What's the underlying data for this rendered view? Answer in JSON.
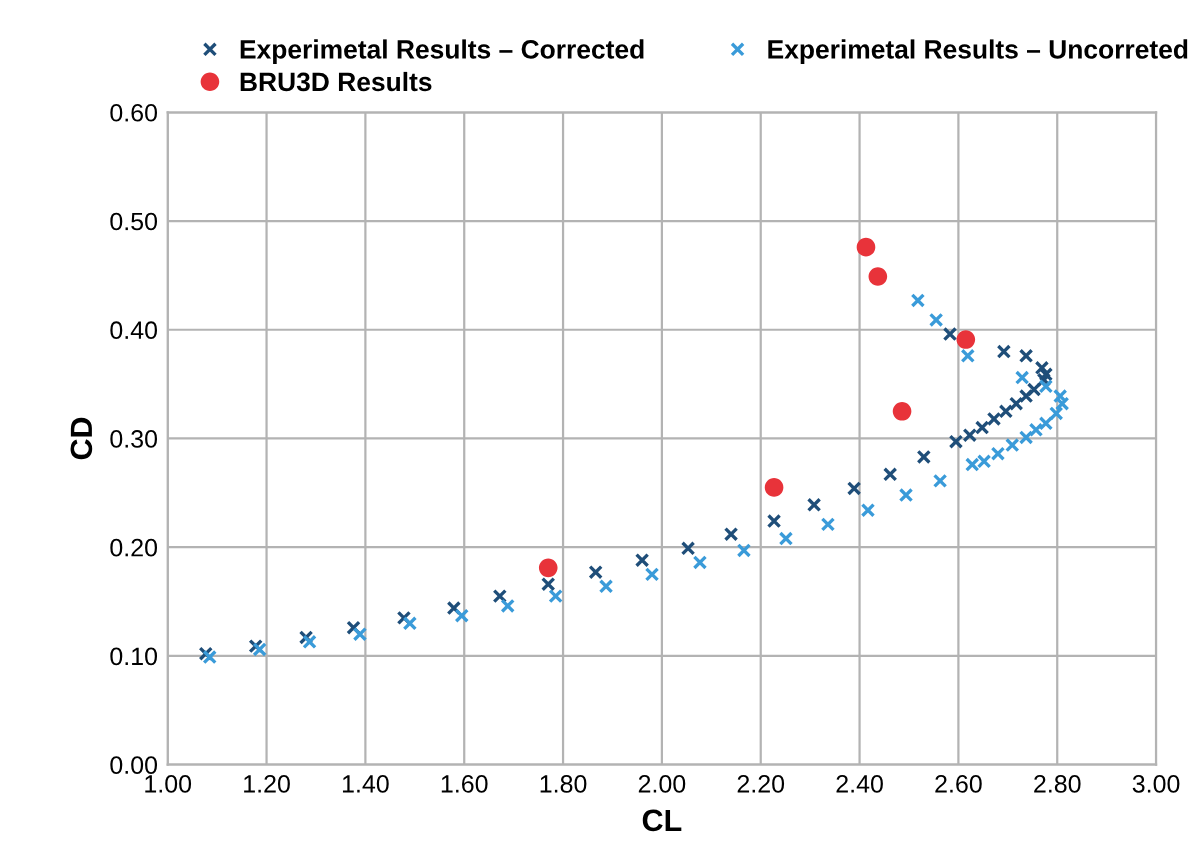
{
  "chart_data": {
    "type": "scatter",
    "xlabel": "CL",
    "ylabel": "CD",
    "xlim": [
      1.0,
      3.0
    ],
    "ylim": [
      0.0,
      0.6
    ],
    "xticks": [
      {
        "value": 1.0,
        "label": "1.00"
      },
      {
        "value": 1.2,
        "label": "1.20"
      },
      {
        "value": 1.4,
        "label": "1.40"
      },
      {
        "value": 1.6,
        "label": "1.60"
      },
      {
        "value": 1.8,
        "label": "1.80"
      },
      {
        "value": 2.0,
        "label": "2.00"
      },
      {
        "value": 2.2,
        "label": "2.20"
      },
      {
        "value": 2.4,
        "label": "2.40"
      },
      {
        "value": 2.6,
        "label": "2.60"
      },
      {
        "value": 2.8,
        "label": "2.80"
      },
      {
        "value": 3.0,
        "label": "3.00"
      }
    ],
    "yticks": [
      {
        "value": 0.0,
        "label": "0.00"
      },
      {
        "value": 0.1,
        "label": "0.10"
      },
      {
        "value": 0.2,
        "label": "0.20"
      },
      {
        "value": 0.3,
        "label": "0.30"
      },
      {
        "value": 0.4,
        "label": "0.40"
      },
      {
        "value": 0.5,
        "label": "0.50"
      },
      {
        "value": 0.6,
        "label": "0.60"
      }
    ],
    "grid": true,
    "legend": "top",
    "series": [
      {
        "name": "Experimetal Results – Corrected",
        "color": "#1f4e79",
        "marker": "cross",
        "x": [
          1.077,
          1.178,
          1.28,
          1.376,
          1.478,
          1.579,
          1.672,
          1.77,
          1.866,
          1.96,
          2.053,
          2.14,
          2.227,
          2.308,
          2.389,
          2.462,
          2.53,
          2.595,
          2.623,
          2.648,
          2.672,
          2.696,
          2.717,
          2.737,
          2.753,
          2.773,
          2.777,
          2.769,
          2.737,
          2.692,
          2.583
        ],
        "values": [
          0.102,
          0.109,
          0.117,
          0.126,
          0.135,
          0.144,
          0.155,
          0.166,
          0.177,
          0.188,
          0.199,
          0.212,
          0.224,
          0.239,
          0.254,
          0.267,
          0.283,
          0.297,
          0.303,
          0.31,
          0.318,
          0.325,
          0.332,
          0.339,
          0.345,
          0.354,
          0.359,
          0.365,
          0.376,
          0.38,
          0.396
        ]
      },
      {
        "name": "Experimetal Results – Uncorreted",
        "color": "#3a9bd9",
        "marker": "cross",
        "x": [
          1.085,
          1.186,
          1.287,
          1.389,
          1.49,
          1.595,
          1.688,
          1.785,
          1.887,
          1.98,
          2.077,
          2.166,
          2.251,
          2.336,
          2.417,
          2.494,
          2.563,
          2.628,
          2.652,
          2.68,
          2.709,
          2.737,
          2.757,
          2.777,
          2.798,
          2.81,
          2.806,
          2.777,
          2.729,
          2.619,
          2.555,
          2.518
        ],
        "values": [
          0.099,
          0.106,
          0.113,
          0.12,
          0.13,
          0.137,
          0.146,
          0.155,
          0.164,
          0.175,
          0.186,
          0.197,
          0.208,
          0.221,
          0.234,
          0.248,
          0.261,
          0.276,
          0.279,
          0.286,
          0.294,
          0.301,
          0.308,
          0.314,
          0.323,
          0.332,
          0.339,
          0.348,
          0.356,
          0.376,
          0.409,
          0.427
        ]
      },
      {
        "name": "BRU3D Results",
        "color": "#e8333a",
        "marker": "circle",
        "x": [
          1.77,
          2.227,
          2.486,
          2.615,
          2.437,
          2.413
        ],
        "values": [
          0.181,
          0.255,
          0.325,
          0.391,
          0.449,
          0.476
        ]
      }
    ]
  }
}
